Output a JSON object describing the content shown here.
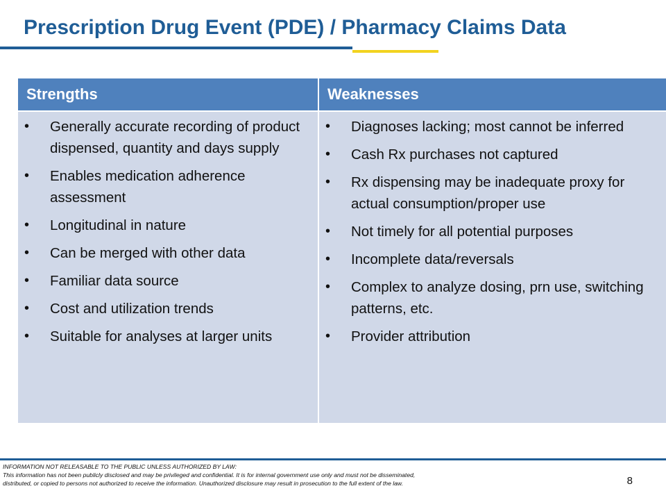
{
  "slide": {
    "title": "Prescription Drug Event (PDE) / Pharmacy Claims Data",
    "page_number": "8"
  },
  "table": {
    "headers": [
      "Strengths",
      "Weaknesses"
    ],
    "strengths": [
      "Generally accurate recording of product dispensed, quantity and days supply",
      "Enables medication adherence assessment",
      "Longitudinal in nature",
      "Can be merged with other data",
      "Familiar data source",
      "Cost and utilization trends",
      "Suitable for analyses at larger units"
    ],
    "weaknesses": [
      "Diagnoses lacking; most cannot be inferred",
      "Cash Rx purchases not captured",
      "Rx dispensing may be inadequate proxy for actual consumption/proper use",
      "Not timely for all potential purposes",
      "Incomplete data/reversals",
      "Complex to analyze dosing, prn use, switching patterns, etc.",
      "Provider attribution"
    ],
    "bullet_glyph": "•"
  },
  "footer": {
    "line1": "INFORMATION NOT RELEASABLE TO THE PUBLIC UNLESS AUTHORIZED BY LAW:",
    "line2": "This information has not been publicly disclosed and may be privileged and confidential.  It is for internal government use only and must not be disseminated,",
    "line3": "distributed, or copied to persons not authorized to receive the information.  Unauthorized disclosure may result in prosecution to the full extent of the law."
  },
  "colors": {
    "title": "#1f5d96",
    "header_fill": "#4f81bd",
    "body_fill": "#d0d8e8",
    "accent_yellow": "#f2d31f"
  }
}
